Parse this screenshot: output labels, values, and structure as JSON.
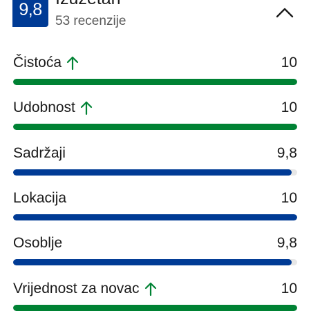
{
  "header": {
    "score": "9,8",
    "rating_word": "Izuzetan",
    "review_count": "53 recenzije"
  },
  "categories": [
    {
      "label": "Čistoća",
      "score": "10",
      "value": 10,
      "trend_up": true,
      "bar_color": "#008234"
    },
    {
      "label": "Udobnost",
      "score": "10",
      "value": 10,
      "trend_up": true,
      "bar_color": "#008234"
    },
    {
      "label": "Sadržaji",
      "score": "9,8",
      "value": 9.8,
      "trend_up": false,
      "bar_color": "#003b95"
    },
    {
      "label": "Lokacija",
      "score": "10",
      "value": 10,
      "trend_up": false,
      "bar_color": "#003b95"
    },
    {
      "label": "Osoblje",
      "score": "9,8",
      "value": 9.8,
      "trend_up": false,
      "bar_color": "#003b95"
    },
    {
      "label": "Vrijednost za novac",
      "score": "10",
      "value": 10,
      "trend_up": true,
      "bar_color": "#008234"
    }
  ],
  "scale_max": 10,
  "colors": {
    "brand_blue": "#003b95",
    "success_green": "#008234",
    "track": "#e7e7e7"
  },
  "icons": {
    "collapse": "chevron-up-icon",
    "trend": "arrow-up-icon"
  }
}
